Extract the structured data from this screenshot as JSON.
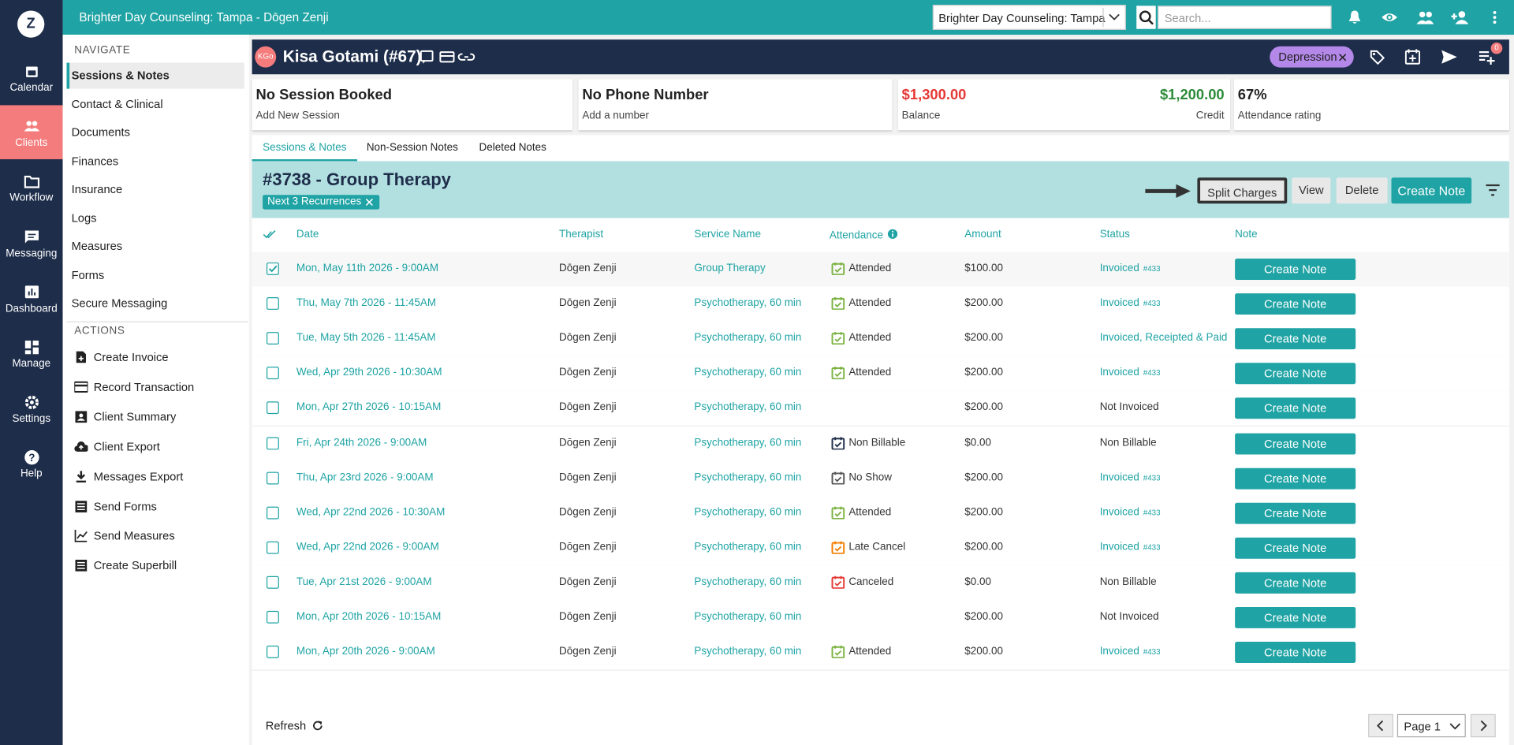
{
  "top_bar": {
    "logo": "Z",
    "title": "Brighter Day Counseling: Tampa - Dōgen Zenji",
    "location": "Brighter Day Counseling: Tampa",
    "search_placeholder": "Search..."
  },
  "sidebar": {
    "items": [
      "Calendar",
      "Clients",
      "Workflow",
      "Messaging",
      "Dashboard",
      "Manage",
      "Settings",
      "Help"
    ]
  },
  "nav": {
    "heading": "NAVIGATE",
    "items": [
      "Sessions & Notes",
      "Contact & Clinical",
      "Documents",
      "Finances",
      "Insurance",
      "Logs",
      "Measures",
      "Forms",
      "Secure Messaging"
    ],
    "actions_heading": "ACTIONS",
    "actions": [
      "Create Invoice",
      "Record Transaction",
      "Client Summary",
      "Client Export",
      "Messages Export",
      "Send Forms",
      "Send Measures",
      "Create Superbill"
    ]
  },
  "client": {
    "initials": "KGo",
    "name": "Kisa Gotami (#67)",
    "tag": "Depression",
    "notification_count": "0"
  },
  "cards": {
    "session": {
      "title": "No Session Booked",
      "subtitle": "Add New Session"
    },
    "phone": {
      "title": "No Phone Number",
      "subtitle": "Add a number"
    },
    "balance": {
      "balance": "$1,300.00",
      "balance_label": "Balance",
      "credit": "$1,200.00",
      "credit_label": "Credit"
    },
    "attendance": {
      "title": "67%",
      "subtitle": "Attendance rating"
    }
  },
  "tabs": [
    "Sessions & Notes",
    "Non-Session Notes",
    "Deleted Notes"
  ],
  "session": {
    "title": "#3738 - Group Therapy",
    "chip": "Next 3 Recurrences",
    "buttons": [
      "Split Charges",
      "View",
      "Delete",
      "Create Note"
    ]
  },
  "table": {
    "headers": [
      "Date",
      "Therapist",
      "Service Name",
      "Attendance",
      "Amount",
      "Status",
      "Note"
    ],
    "rows": [
      {
        "selected": true,
        "date": "Mon, May 11th 2026 - 9:00AM",
        "therapist": "Dōgen Zenji",
        "service": "Group Therapy",
        "attendance": "Attended",
        "attendance_color": "#7cb342",
        "amount": "$100.00",
        "status": "Invoiced",
        "invoice": "#433",
        "status_color": "#1fa3a4",
        "note": "Create Note"
      },
      {
        "selected": false,
        "date": "Thu, May 7th 2026 - 11:45AM",
        "therapist": "Dōgen Zenji",
        "service": "Psychotherapy, 60 min",
        "attendance": "Attended",
        "attendance_color": "#7cb342",
        "amount": "$200.00",
        "status": "Invoiced",
        "invoice": "#433",
        "status_color": "#1fa3a4",
        "note": "Create Note"
      },
      {
        "selected": false,
        "date": "Tue, May 5th 2026 - 11:45AM",
        "therapist": "Dōgen Zenji",
        "service": "Psychotherapy, 60 min",
        "attendance": "Attended",
        "attendance_color": "#7cb342",
        "amount": "$200.00",
        "status": "Invoiced, Receipted & Paid ...",
        "invoice": null,
        "status_color": "#1fa3a4",
        "note": "Create Note"
      },
      {
        "selected": false,
        "date": "Wed, Apr 29th 2026 - 10:30AM",
        "therapist": "Dōgen Zenji",
        "service": "Psychotherapy, 60 min",
        "attendance": "Attended",
        "attendance_color": "#7cb342",
        "amount": "$200.00",
        "status": "Invoiced",
        "invoice": "#433",
        "status_color": "#1fa3a4",
        "note": "Create Note"
      },
      {
        "selected": false,
        "date": "Mon, Apr 27th 2026 - 10:15AM",
        "therapist": "Dōgen Zenji",
        "service": "Psychotherapy, 60 min",
        "attendance": null,
        "attendance_color": null,
        "amount": "$200.00",
        "status": "Not Invoiced",
        "invoice": null,
        "status_color": "#333333",
        "note": "Create Note"
      },
      {
        "selected": false,
        "date": "Fri, Apr 24th 2026 - 9:00AM",
        "therapist": "Dōgen Zenji",
        "service": "Psychotherapy, 60 min",
        "attendance": "Non Billable",
        "attendance_color": "#1e2d4a",
        "amount": "$0.00",
        "status": "Non Billable",
        "invoice": null,
        "status_color": "#333333",
        "note": "Create Note"
      },
      {
        "selected": false,
        "date": "Thu, Apr 23rd 2026 - 9:00AM",
        "therapist": "Dōgen Zenji",
        "service": "Psychotherapy, 60 min",
        "attendance": "No Show",
        "attendance_color": "#555555",
        "amount": "$200.00",
        "status": "Invoiced",
        "invoice": "#433",
        "status_color": "#1fa3a4",
        "note": "Create Note"
      },
      {
        "selected": false,
        "date": "Wed, Apr 22nd 2026 - 10:30AM",
        "therapist": "Dōgen Zenji",
        "service": "Psychotherapy, 60 min",
        "attendance": "Attended",
        "attendance_color": "#7cb342",
        "amount": "$200.00",
        "status": "Invoiced",
        "invoice": "#433",
        "status_color": "#1fa3a4",
        "note": "Create Note"
      },
      {
        "selected": false,
        "date": "Wed, Apr 22nd 2026 - 9:00AM",
        "therapist": "Dōgen Zenji",
        "service": "Psychotherapy, 60 min",
        "attendance": "Late Cancel",
        "attendance_color": "#f57c00",
        "amount": "$200.00",
        "status": "Invoiced",
        "invoice": "#433",
        "status_color": "#1fa3a4",
        "note": "Create Note"
      },
      {
        "selected": false,
        "date": "Tue, Apr 21st 2026 - 9:00AM",
        "therapist": "Dōgen Zenji",
        "service": "Psychotherapy, 60 min",
        "attendance": "Canceled",
        "attendance_color": "#e53935",
        "amount": "$0.00",
        "status": "Non Billable",
        "invoice": null,
        "status_color": "#333333",
        "note": "Create Note"
      },
      {
        "selected": false,
        "date": "Mon, Apr 20th 2026 - 10:15AM",
        "therapist": "Dōgen Zenji",
        "service": "Psychotherapy, 60 min",
        "attendance": null,
        "attendance_color": null,
        "amount": "$200.00",
        "status": "Not Invoiced",
        "invoice": null,
        "status_color": "#333333",
        "note": "Create Note"
      },
      {
        "selected": false,
        "date": "Mon, Apr 20th 2026 - 9:00AM",
        "therapist": "Dōgen Zenji",
        "service": "Psychotherapy, 60 min",
        "attendance": "Attended",
        "attendance_color": "#7cb342",
        "amount": "$200.00",
        "status": "Invoiced",
        "invoice": "#433",
        "status_color": "#1fa3a4",
        "note": "Create Note"
      }
    ]
  },
  "footer": {
    "refresh": "Refresh",
    "page": "Page 1"
  }
}
